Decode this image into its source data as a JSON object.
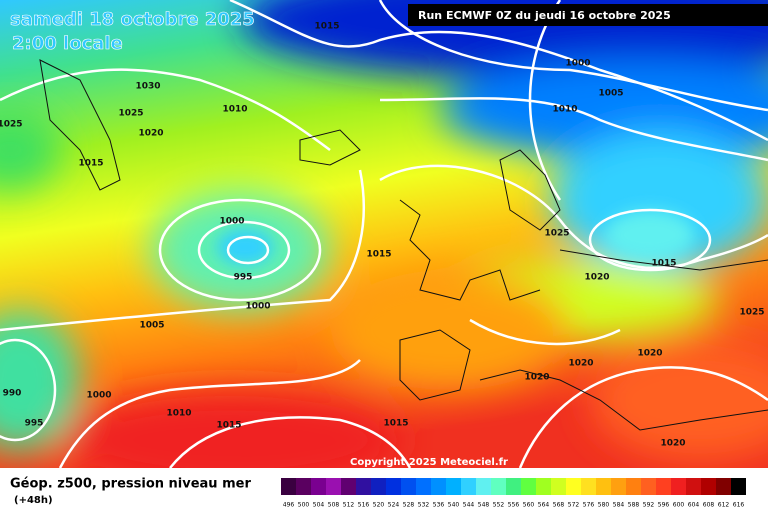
{
  "header": {
    "title": "samedi 18 octobre 2025",
    "time": "2:00 locale",
    "run": "Run ECMWF 0Z du jeudi 16 octobre 2025"
  },
  "isobar_labels": [
    "1015",
    "1000",
    "1005",
    "1010",
    "1030",
    "1010",
    "1025",
    "1025",
    "1020",
    "1015",
    "1000",
    "995",
    "1000",
    "1015",
    "1025",
    "1020",
    "1015",
    "1005",
    "1025",
    "990",
    "995",
    "1000",
    "1010",
    "1015",
    "1015",
    "1020",
    "1020",
    "1020",
    "1020"
  ],
  "copyright": "Copyright 2025 Meteociel.fr",
  "footer": {
    "caption": "Géop. z500, pression niveau mer",
    "lead": "(+48h)"
  },
  "scale": {
    "labels": [
      496,
      500,
      504,
      508,
      512,
      516,
      520,
      524,
      528,
      532,
      536,
      540,
      544,
      548,
      552,
      556,
      560,
      564,
      568,
      572,
      576,
      580,
      584,
      588,
      592,
      596,
      600,
      604,
      608,
      612,
      616
    ],
    "colors": [
      "#3a0040",
      "#5a0060",
      "#7a0090",
      "#9a10b0",
      "#600070",
      "#3010a0",
      "#1020c0",
      "#0030e0",
      "#0050f0",
      "#0070ff",
      "#0090ff",
      "#00b0ff",
      "#30d0ff",
      "#60f0f0",
      "#60ffc0",
      "#40f080",
      "#60ff40",
      "#a0ff20",
      "#d0ff20",
      "#ffff20",
      "#ffe020",
      "#ffc010",
      "#ffa010",
      "#ff8010",
      "#ff6020",
      "#ff4020",
      "#f02020",
      "#d01010",
      "#b00000",
      "#800000",
      "#000000"
    ]
  }
}
